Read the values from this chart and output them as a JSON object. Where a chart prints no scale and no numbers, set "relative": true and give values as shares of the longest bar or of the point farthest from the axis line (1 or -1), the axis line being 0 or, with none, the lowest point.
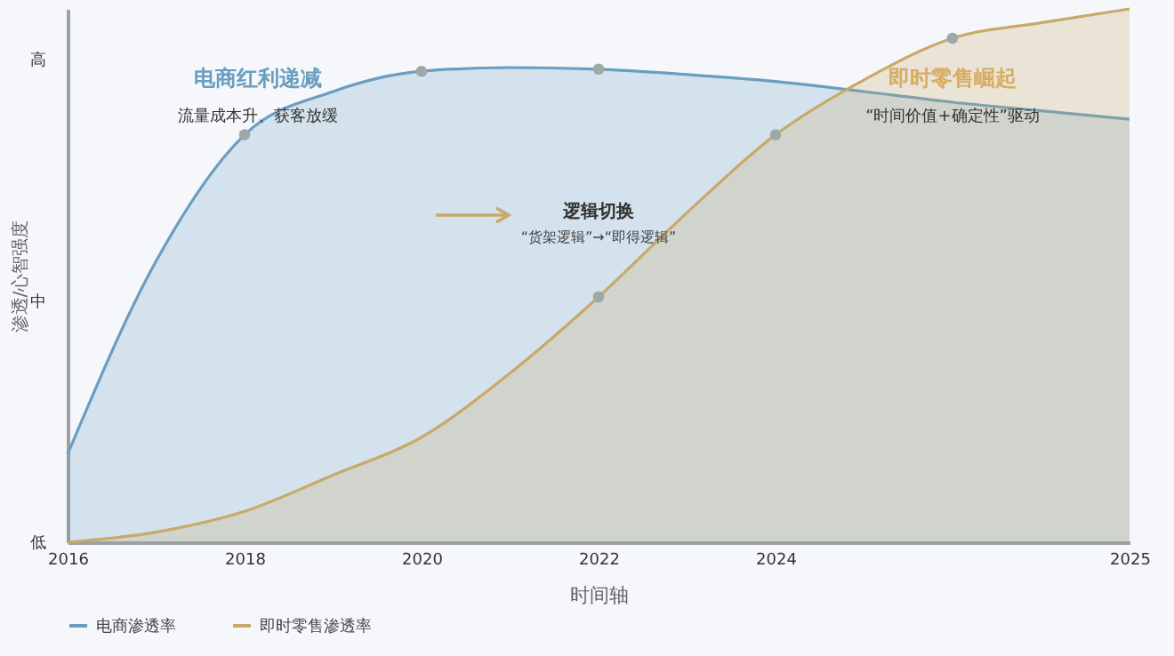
{
  "chart_data": {
    "type": "area",
    "relative": true,
    "xlabel": "时间轴",
    "ylabel": "渗透/心智强度",
    "categories": [
      "2016",
      null,
      "2018",
      null,
      "2020",
      null,
      "2022",
      null,
      "2024",
      null,
      null,
      null,
      "2025"
    ],
    "grid": false,
    "legend": "bottom",
    "line_style": "solid",
    "series": [
      {
        "name": "电商渗透率",
        "color": "#6a9ec0",
        "values": [
          0.165,
          0.527,
          0.764,
          0.845,
          0.883,
          0.89,
          0.887,
          0.877,
          0.864,
          0.845,
          0.825,
          0.809,
          0.793
        ]
      },
      {
        "name": "即时零售渗透率",
        "color": "#c9a96a",
        "values": [
          0,
          0.019,
          0.058,
          0.126,
          0.197,
          0.317,
          0.46,
          0.618,
          0.764,
          0.867,
          0.945,
          0.974,
          1
        ]
      },
      {
        "type": "scatter",
        "marker": "circle",
        "color": "#9ea8a8",
        "values": [
          null,
          null,
          0.764,
          null,
          0.883,
          null,
          0.887,
          null,
          null,
          null,
          null,
          null,
          null
        ]
      },
      {
        "type": "scatter",
        "marker": "circle",
        "color": "#9ea8a8",
        "values": [
          null,
          null,
          null,
          null,
          null,
          null,
          0.46,
          null,
          0.764,
          null,
          0.945,
          null,
          null
        ]
      }
    ],
    "annotations": [
      "电商红利递减",
      "流量成本升、获客放缓",
      "逻辑切换",
      "“货架逻辑”→“即得逻辑”",
      "即时零售崛起",
      "“时间价值+确定性”驱动",
      "低",
      "中",
      "高"
    ]
  }
}
